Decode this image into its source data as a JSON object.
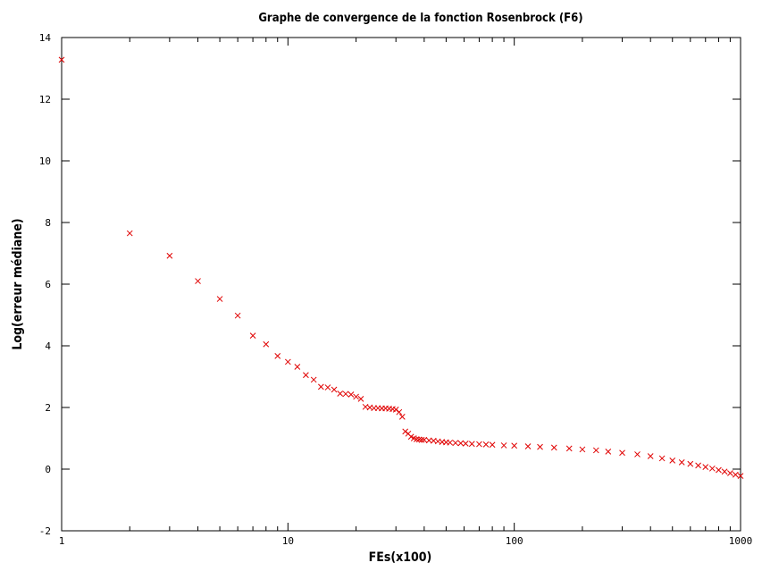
{
  "chart_data": {
    "type": "scatter",
    "title": "Graphe de convergence de la fonction Rosenbrock (F6)",
    "xlabel": "FEs(x100)",
    "ylabel": "Log(erreur médiane)",
    "xscale": "log",
    "xlim": [
      1,
      1000
    ],
    "ylim": [
      -2,
      14
    ],
    "x_ticks": [
      1,
      10,
      100,
      1000
    ],
    "x_tick_labels": [
      "1",
      "10",
      "100",
      "1000"
    ],
    "y_ticks": [
      -2,
      0,
      2,
      4,
      6,
      8,
      10,
      12,
      14
    ],
    "y_tick_labels": [
      "-2",
      "0",
      "2",
      "4",
      "6",
      "8",
      "10",
      "12",
      "14"
    ],
    "grid": false,
    "marker": "x",
    "color": "#e00000",
    "series": [
      {
        "points": [
          [
            1,
            13.28
          ],
          [
            2,
            7.65
          ],
          [
            3,
            6.92
          ],
          [
            4,
            6.1
          ],
          [
            5,
            5.52
          ],
          [
            6,
            4.98
          ],
          [
            7,
            4.33
          ],
          [
            8,
            4.05
          ],
          [
            9,
            3.67
          ],
          [
            10,
            3.48
          ],
          [
            11,
            3.32
          ],
          [
            12,
            3.05
          ],
          [
            13,
            2.9
          ],
          [
            14,
            2.67
          ],
          [
            15,
            2.65
          ],
          [
            16,
            2.58
          ],
          [
            17,
            2.45
          ],
          [
            18,
            2.44
          ],
          [
            19,
            2.42
          ],
          [
            20,
            2.35
          ],
          [
            21,
            2.28
          ],
          [
            22,
            2.02
          ],
          [
            23,
            2.0
          ],
          [
            24,
            1.98
          ],
          [
            25,
            1.98
          ],
          [
            26,
            1.97
          ],
          [
            27,
            1.97
          ],
          [
            28,
            1.96
          ],
          [
            29,
            1.95
          ],
          [
            30,
            1.93
          ],
          [
            31,
            1.85
          ],
          [
            32,
            1.7
          ],
          [
            33,
            1.22
          ],
          [
            34,
            1.15
          ],
          [
            35,
            1.05
          ],
          [
            36,
            1.0
          ],
          [
            37,
            0.97
          ],
          [
            38,
            0.96
          ],
          [
            39,
            0.95
          ],
          [
            40,
            0.95
          ],
          [
            42,
            0.93
          ],
          [
            44,
            0.92
          ],
          [
            46,
            0.9
          ],
          [
            48,
            0.88
          ],
          [
            50,
            0.87
          ],
          [
            52,
            0.86
          ],
          [
            55,
            0.85
          ],
          [
            58,
            0.84
          ],
          [
            61,
            0.83
          ],
          [
            65,
            0.82
          ],
          [
            70,
            0.81
          ],
          [
            75,
            0.8
          ],
          [
            80,
            0.79
          ],
          [
            90,
            0.77
          ],
          [
            100,
            0.76
          ],
          [
            115,
            0.74
          ],
          [
            130,
            0.72
          ],
          [
            150,
            0.7
          ],
          [
            175,
            0.67
          ],
          [
            200,
            0.64
          ],
          [
            230,
            0.61
          ],
          [
            260,
            0.57
          ],
          [
            300,
            0.53
          ],
          [
            350,
            0.48
          ],
          [
            400,
            0.42
          ],
          [
            450,
            0.35
          ],
          [
            500,
            0.28
          ],
          [
            550,
            0.22
          ],
          [
            600,
            0.17
          ],
          [
            650,
            0.12
          ],
          [
            700,
            0.07
          ],
          [
            750,
            0.02
          ],
          [
            800,
            -0.03
          ],
          [
            850,
            -0.08
          ],
          [
            900,
            -0.13
          ],
          [
            950,
            -0.18
          ],
          [
            1000,
            -0.22
          ]
        ]
      }
    ]
  }
}
